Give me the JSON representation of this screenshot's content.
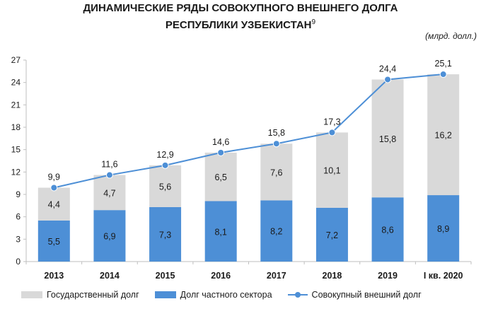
{
  "title_line1": "ДИНАМИЧЕСКИЕ РЯДЫ СОВОКУПНОГО ВНЕШНЕГО ДОЛГА",
  "title_line2": "РЕСПУБЛИКИ УЗБЕКИСТАН",
  "footnote_mark": "9",
  "unit": "(млрд. долл.)",
  "colors": {
    "government": "#d9d9d9",
    "private": "#4d8fd6",
    "total_line": "#4d8fd6",
    "axis": "#bfbfbf"
  },
  "chart_data": {
    "type": "bar",
    "stacked": true,
    "categories": [
      "2013",
      "2014",
      "2015",
      "2016",
      "2017",
      "2018",
      "2019",
      "I кв. 2020"
    ],
    "series": [
      {
        "name": "Долг частного сектора",
        "kind": "bar",
        "values": [
          5.5,
          6.9,
          7.3,
          8.1,
          8.2,
          7.2,
          8.6,
          8.9
        ]
      },
      {
        "name": "Государственный долг",
        "kind": "bar",
        "values": [
          4.4,
          4.7,
          5.6,
          6.5,
          7.6,
          10.1,
          15.8,
          16.2
        ]
      },
      {
        "name": "Совокупный внешний долг",
        "kind": "line",
        "values": [
          9.9,
          11.6,
          12.9,
          14.6,
          15.8,
          17.3,
          24.4,
          25.1
        ]
      }
    ],
    "value_labels": {
      "private": [
        "5,5",
        "6,9",
        "7,3",
        "8,1",
        "8,2",
        "7,2",
        "8,6",
        "8,9"
      ],
      "government": [
        "4,4",
        "4,7",
        "5,6",
        "6,5",
        "7,6",
        "10,1",
        "15,8",
        "16,2"
      ],
      "total": [
        "9,9",
        "11,6",
        "12,9",
        "14,6",
        "15,8",
        "17,3",
        "24,4",
        "25,1"
      ]
    },
    "yticks": [
      "0",
      "3",
      "6",
      "9",
      "12",
      "15",
      "18",
      "21",
      "24",
      "27"
    ],
    "ylim": [
      0,
      27
    ],
    "grid": false,
    "legend_position": "bottom"
  },
  "legend": {
    "government": "Государственный долг",
    "private": "Долг частного сектора",
    "total": "Совокупный внешний долг"
  }
}
